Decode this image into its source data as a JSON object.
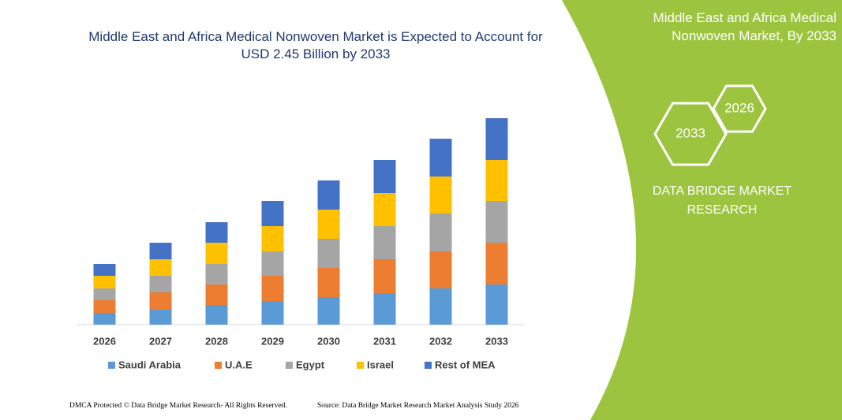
{
  "chart_data": {
    "type": "stacked_bar",
    "title": "Middle East and Africa Medical Nonwoven Market is Expected to Account for USD 2.45 Billion by 2033",
    "categories": [
      "2026",
      "2027",
      "2028",
      "2029",
      "2030",
      "2031",
      "2032",
      "2033"
    ],
    "series": [
      {
        "name": "Saudi Arabia",
        "color": "#5b9bd5",
        "values": [
          15,
          19,
          25,
          30,
          35,
          40,
          46,
          51
        ]
      },
      {
        "name": "U.A.E",
        "color": "#ed7d31",
        "values": [
          16,
          22,
          26,
          32,
          37,
          43,
          47,
          53
        ]
      },
      {
        "name": "Egypt",
        "color": "#a5a5a5",
        "values": [
          15,
          21,
          26,
          31,
          37,
          42,
          48,
          53
        ]
      },
      {
        "name": "Israel",
        "color": "#ffc000",
        "values": [
          16,
          21,
          27,
          32,
          37,
          42,
          47,
          52
        ]
      },
      {
        "name": "Rest of MEA",
        "color": "#4472c4",
        "values": [
          15,
          21,
          26,
          32,
          37,
          42,
          48,
          53
        ]
      }
    ],
    "ylim": [
      0,
      300
    ]
  },
  "panel": {
    "title": "Middle East and Africa Medical Nonwoven Market, By 2033",
    "hex_large": "2033",
    "hex_small": "2026",
    "brand": "DATA BRIDGE MARKET RESEARCH"
  },
  "footer": {
    "left": "DMCA Protected © Data Bridge Market Research- All Rights Reserved.",
    "right": "Source: Data Bridge Market Research Market Analysis Study 2026"
  }
}
